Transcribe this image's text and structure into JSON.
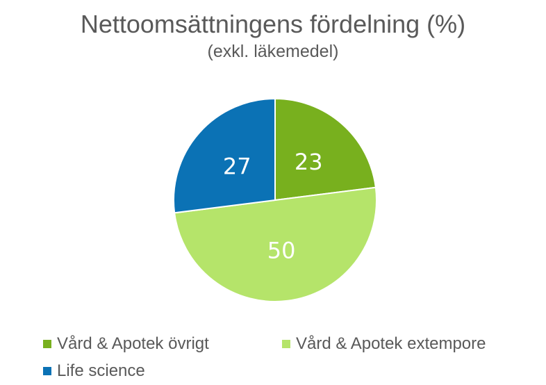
{
  "chart_data": {
    "type": "pie",
    "title": "Nettoomsättningens fördelning (%)",
    "subtitle": "(exkl. läkemedel)",
    "slices": [
      {
        "name": "Vård & Apotek övrigt",
        "value": 23,
        "label": "23",
        "color": "#78b01e"
      },
      {
        "name": "Vård & Apotek extempore",
        "value": 50,
        "label": "50",
        "color": "#b5e46a"
      },
      {
        "name": "Life science",
        "value": 27,
        "label": "27",
        "color": "#0b72b5"
      }
    ],
    "legend_position": "bottom",
    "start_angle": "12 o'clock, clockwise",
    "label_color": "#ffffff"
  }
}
